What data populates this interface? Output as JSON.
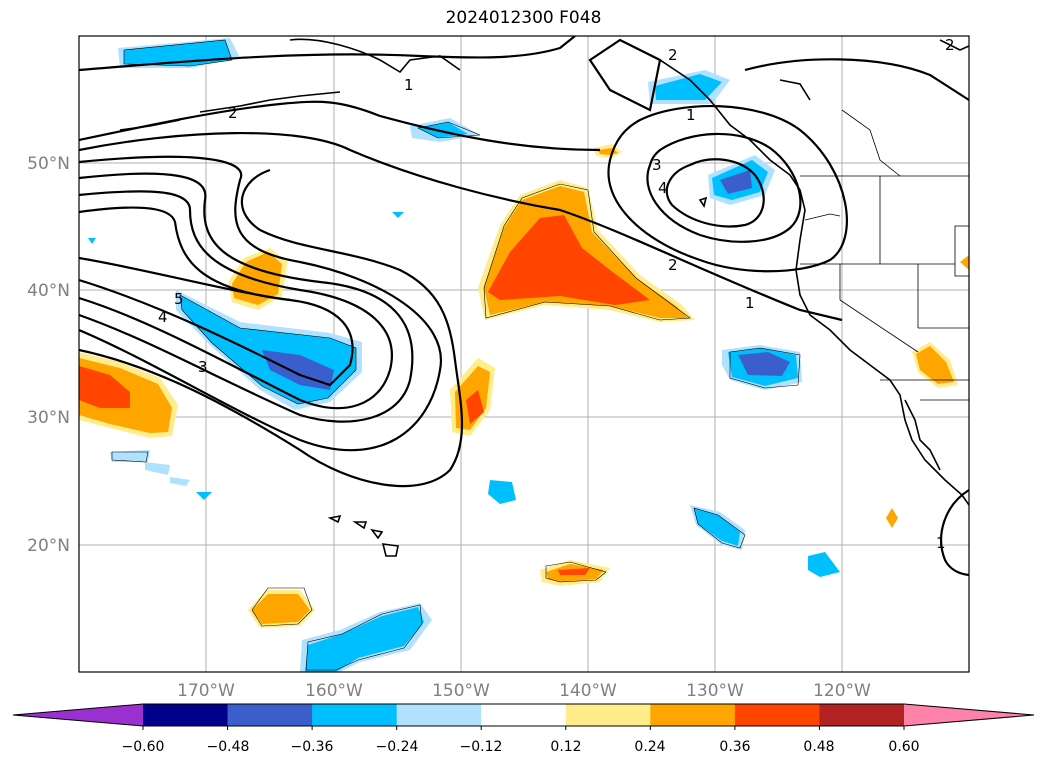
{
  "title": "2024012300 F048",
  "lat_labels": [
    "50°N",
    "40°N",
    "30°N",
    "20°N"
  ],
  "lon_labels": [
    "170°W",
    "160°W",
    "150°W",
    "140°W",
    "130°W",
    "120°W"
  ],
  "colorbar": {
    "tick_labels": [
      "−0.60",
      "−0.48",
      "−0.36",
      "−0.24",
      "−0.12",
      "0.12",
      "0.24",
      "0.36",
      "0.48",
      "0.60"
    ],
    "colors": [
      "#9b30d0",
      "#00008b",
      "#3a5fcd",
      "#00bfff",
      "#b0e2ff",
      "#ffffff",
      "#ffec8b",
      "#ffa500",
      "#ff4500",
      "#b22222",
      "#ff82ab"
    ]
  },
  "contour_labels": [
    "1",
    "2",
    "3",
    "4",
    "5",
    "3",
    "4",
    "2",
    "1",
    "2",
    "1",
    "2",
    "1"
  ],
  "legend_colors": {
    "neg_light": "#b0e2ff",
    "neg_mid": "#00bfff",
    "neg_strong": "#3a5fcd",
    "pos_light": "#ffec8b",
    "pos_mid": "#ffa500",
    "pos_strong": "#ff4500"
  }
}
